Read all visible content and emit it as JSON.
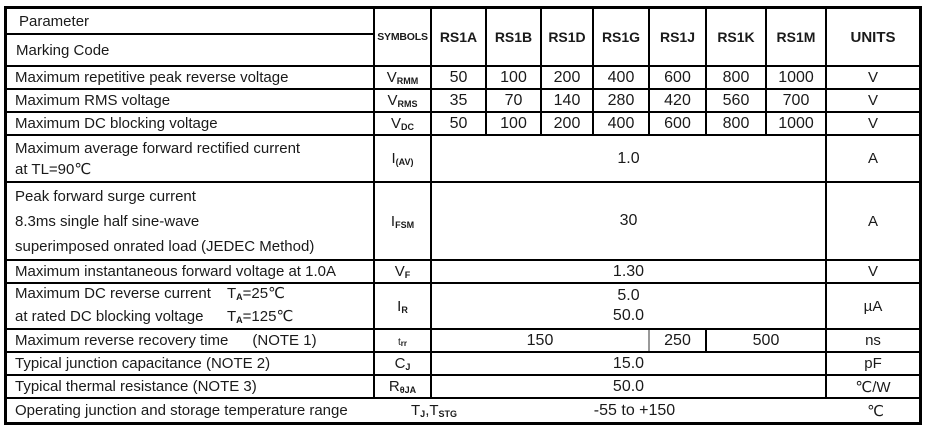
{
  "page": {
    "background": "#ffffff",
    "line_color": "#000000",
    "text_color": "#1a1a1a",
    "divider_gray": "#999999"
  },
  "table": {
    "header": {
      "parameter_label": "Parameter",
      "marking_code_label": "Marking Code",
      "symbols_label": "SYMBOLS",
      "parts": [
        "RS1A",
        "RS1B",
        "RS1D",
        "RS1G",
        "RS1J",
        "RS1K",
        "RS1M"
      ],
      "units_label": "UNITS"
    },
    "rows": [
      {
        "param_lines": [
          "Maximum repetitive peak reverse voltage"
        ],
        "symbol": [
          {
            "t": "V"
          },
          {
            "s": "RMM"
          }
        ],
        "type": "per_part",
        "values": [
          "50",
          "100",
          "200",
          "400",
          "600",
          "800",
          "1000"
        ],
        "unit": "V"
      },
      {
        "param_lines": [
          "Maximum RMS voltage"
        ],
        "symbol": [
          {
            "t": "V"
          },
          {
            "s": "RMS"
          }
        ],
        "type": "per_part",
        "values": [
          "35",
          "70",
          "140",
          "280",
          "420",
          "560",
          "700"
        ],
        "unit": "V"
      },
      {
        "param_lines": [
          "Maximum DC blocking voltage"
        ],
        "symbol": [
          {
            "t": "V"
          },
          {
            "s": "DC"
          }
        ],
        "type": "per_part",
        "values": [
          "50",
          "100",
          "200",
          "400",
          "600",
          "800",
          "1000"
        ],
        "unit": "V"
      },
      {
        "param_lines": [
          "Maximum average forward rectified current",
          "at TL=90℃"
        ],
        "symbol": [
          {
            "t": "I"
          },
          {
            "s": "(AV)"
          }
        ],
        "type": "span",
        "values": [
          "1.0"
        ],
        "unit": "A",
        "height": 47
      },
      {
        "param_lines": [
          "Peak forward surge current",
          "8.3ms single half sine-wave",
          "superimposed onrated load (JEDEC Method)"
        ],
        "symbol": [
          {
            "t": "I"
          },
          {
            "s": "FSM"
          }
        ],
        "type": "span",
        "values": [
          "30"
        ],
        "unit": "A",
        "height": 78
      },
      {
        "param_lines": [
          "Maximum instantaneous forward voltage at 1.0A"
        ],
        "symbol": [
          {
            "t": "V"
          },
          {
            "s": "F"
          }
        ],
        "type": "span",
        "values": [
          "1.30"
        ],
        "unit": "V"
      },
      {
        "param_lines": [
          "Maximum DC reverse current",
          "at rated DC blocking voltage"
        ],
        "conditions": [
          [
            {
              "t": "T"
            },
            {
              "s": "A"
            },
            {
              "t": "=25℃"
            }
          ],
          [
            {
              "t": "T"
            },
            {
              "s": "A"
            },
            {
              "t": "=125℃"
            }
          ]
        ],
        "symbol": [
          {
            "t": "I"
          },
          {
            "s": "R"
          }
        ],
        "type": "span",
        "values": [
          "5.0",
          "50.0"
        ],
        "unit": "µA",
        "height": 46
      },
      {
        "param_lines": [
          "Maximum reverse recovery time"
        ],
        "note": "(NOTE 1)",
        "symbol": [
          {
            "t": "t"
          },
          {
            "s": "rr"
          }
        ],
        "symbol_small": true,
        "type": "segments",
        "segments": [
          {
            "text": "150",
            "cols": 4,
            "right_border": "gray"
          },
          {
            "text": "250",
            "cols": 1
          },
          {
            "text": "500",
            "cols": 2
          }
        ],
        "unit": "ns"
      },
      {
        "param_lines": [
          "Typical junction capacitance (NOTE 2)"
        ],
        "symbol": [
          {
            "t": "C"
          },
          {
            "s": "J"
          }
        ],
        "type": "span",
        "values": [
          "15.0"
        ],
        "unit": "pF"
      },
      {
        "param_lines": [
          "Typical thermal resistance (NOTE 3)"
        ],
        "symbol": [
          {
            "t": "R"
          },
          {
            "s": "θJA"
          }
        ],
        "type": "span",
        "values": [
          "50.0"
        ],
        "unit": "℃/W"
      },
      {
        "param_lines": [
          "Operating junction and storage temperature range"
        ],
        "symbol": [
          {
            "t": "T"
          },
          {
            "s": "J"
          },
          {
            "t": ","
          },
          {
            "t": "T"
          },
          {
            "s": "STG"
          }
        ],
        "type": "open",
        "values": [
          "-55 to +150"
        ],
        "unit": "℃"
      }
    ]
  }
}
